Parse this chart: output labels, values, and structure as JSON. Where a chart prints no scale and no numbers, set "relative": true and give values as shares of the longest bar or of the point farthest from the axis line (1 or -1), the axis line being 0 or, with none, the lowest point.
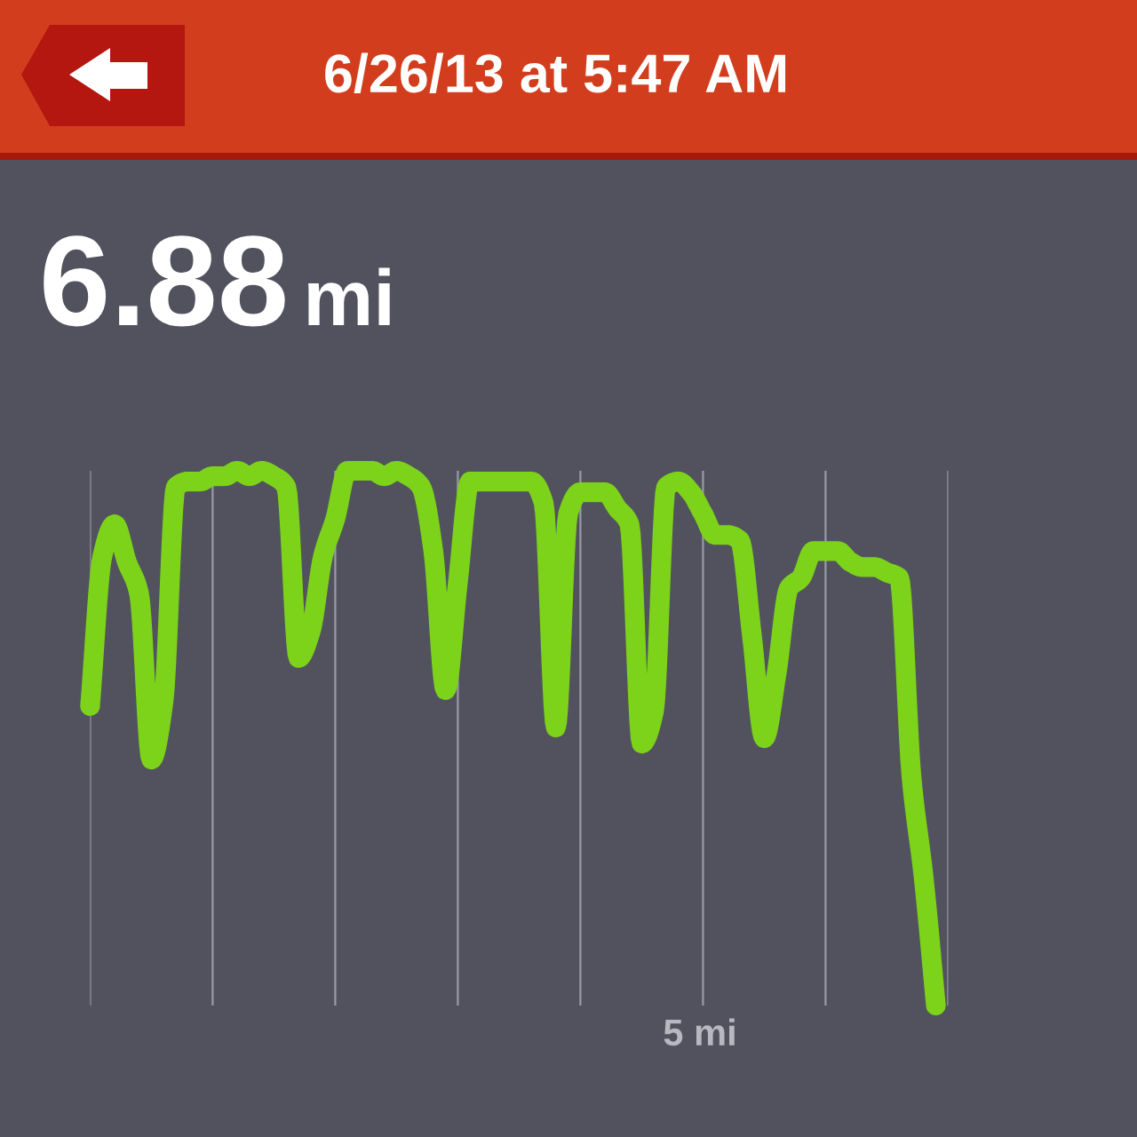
{
  "chart_data": {
    "type": "line",
    "title": "6/26/13 at 5:47 AM",
    "subtitle": "6.88 mi",
    "relative": true,
    "categories": [
      null,
      null,
      null,
      null,
      null,
      null,
      null,
      null,
      null,
      null,
      null,
      null,
      null,
      null,
      null,
      null,
      null,
      null,
      null,
      null,
      null,
      null,
      null,
      null,
      null,
      null,
      null,
      null,
      null,
      null,
      null,
      null,
      null,
      null,
      null,
      null,
      null,
      null,
      null,
      null,
      null,
      null,
      null,
      null,
      null,
      null,
      null,
      null,
      null,
      null,
      null,
      null,
      null,
      null,
      null,
      null,
      null,
      null,
      null,
      null,
      null,
      null,
      null,
      null,
      null,
      null,
      null,
      null,
      null,
      null,
      null
    ],
    "series": [
      {
        "color": "#7cd31a",
        "values": [
          0.56,
          0.84,
          0.9,
          0.83,
          0.77,
          0.46,
          0.57,
          0.97,
          0.98,
          0.98,
          0.99,
          0.99,
          1.0,
          0.99,
          1.0,
          0.99,
          0.97,
          0.65,
          0.7,
          0.84,
          0.91,
          1.0,
          1.0,
          1.0,
          0.99,
          1.0,
          0.99,
          0.97,
          0.85,
          0.59,
          0.79,
          0.98,
          0.98,
          0.98,
          0.98,
          0.98,
          0.98,
          0.94,
          0.52,
          0.92,
          0.96,
          0.96,
          0.96,
          0.93,
          0.9,
          0.49,
          0.55,
          0.97,
          0.98,
          0.96,
          0.92,
          0.88,
          0.88,
          0.87,
          0.69,
          0.5,
          0.62,
          0.78,
          0.8,
          0.85,
          0.85,
          0.85,
          0.83,
          0.82,
          0.82,
          0.81,
          0.8,
          0.43,
          0.24,
          0,
          null
        ]
      }
    ],
    "annotations": [
      "5 mi"
    ],
    "grid": "x",
    "line_style": "solid"
  }
}
